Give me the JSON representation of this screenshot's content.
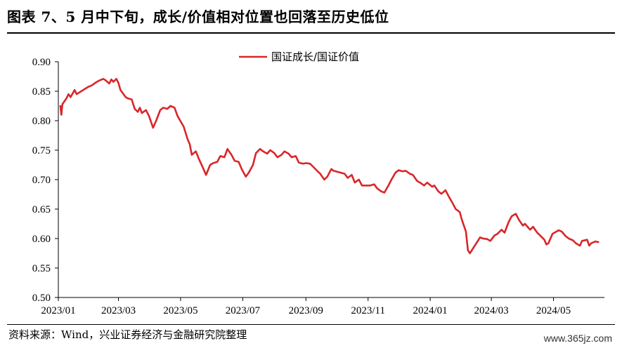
{
  "title": "图表 7、5 月中下旬，成长/价值相对位置也回落至历史低位",
  "source": "资料来源：Wind，兴业证券经济与金融研究院整理",
  "watermark": "www.365jz.com",
  "chart_data": {
    "type": "line",
    "title": "",
    "xlabel": "",
    "ylabel": "",
    "legend": "top-center",
    "grid": false,
    "ylim": [
      0.5,
      0.9
    ],
    "yticks": [
      "0.90",
      "0.85",
      "0.80",
      "0.75",
      "0.70",
      "0.65",
      "0.60",
      "0.55",
      "0.50"
    ],
    "xticks": [
      "2023/01",
      "2023/03",
      "2023/05",
      "2023/07",
      "2023/09",
      "2023/11",
      "2024/01",
      "2024/03",
      "2024/05"
    ],
    "xlim": [
      "2023/01",
      "2024/06/20"
    ],
    "series": [
      {
        "name": "国证成长/国证价值",
        "color": "#d9262a",
        "points": [
          [
            "2023-01-03",
            0.825
          ],
          [
            "2023-01-04",
            0.81
          ],
          [
            "2023-01-05",
            0.828
          ],
          [
            "2023-01-09",
            0.838
          ],
          [
            "2023-01-11",
            0.845
          ],
          [
            "2023-01-13",
            0.84
          ],
          [
            "2023-01-17",
            0.852
          ],
          [
            "2023-01-19",
            0.845
          ],
          [
            "2023-01-30",
            0.857
          ],
          [
            "2023-02-03",
            0.86
          ],
          [
            "2023-02-07",
            0.865
          ],
          [
            "2023-02-10",
            0.868
          ],
          [
            "2023-02-14",
            0.871
          ],
          [
            "2023-02-16",
            0.869
          ],
          [
            "2023-02-20",
            0.863
          ],
          [
            "2023-02-22",
            0.87
          ],
          [
            "2023-02-24",
            0.866
          ],
          [
            "2023-02-27",
            0.871
          ],
          [
            "2023-03-01",
            0.864
          ],
          [
            "2023-03-03",
            0.852
          ],
          [
            "2023-03-08",
            0.84
          ],
          [
            "2023-03-10",
            0.838
          ],
          [
            "2023-03-14",
            0.836
          ],
          [
            "2023-03-17",
            0.82
          ],
          [
            "2023-03-20",
            0.815
          ],
          [
            "2023-03-22",
            0.822
          ],
          [
            "2023-03-24",
            0.813
          ],
          [
            "2023-03-28",
            0.818
          ],
          [
            "2023-03-31",
            0.808
          ],
          [
            "2023-04-04",
            0.788
          ],
          [
            "2023-04-07",
            0.8
          ],
          [
            "2023-04-11",
            0.818
          ],
          [
            "2023-04-14",
            0.822
          ],
          [
            "2023-04-18",
            0.82
          ],
          [
            "2023-04-21",
            0.825
          ],
          [
            "2023-04-25",
            0.822
          ],
          [
            "2023-04-28",
            0.808
          ],
          [
            "2023-05-04",
            0.79
          ],
          [
            "2023-05-08",
            0.768
          ],
          [
            "2023-05-10",
            0.76
          ],
          [
            "2023-05-12",
            0.742
          ],
          [
            "2023-05-16",
            0.748
          ],
          [
            "2023-05-19",
            0.735
          ],
          [
            "2023-05-23",
            0.72
          ],
          [
            "2023-05-26",
            0.708
          ],
          [
            "2023-05-30",
            0.725
          ],
          [
            "2023-06-02",
            0.728
          ],
          [
            "2023-06-06",
            0.73
          ],
          [
            "2023-06-09",
            0.74
          ],
          [
            "2023-06-13",
            0.738
          ],
          [
            "2023-06-16",
            0.752
          ],
          [
            "2023-06-20",
            0.742
          ],
          [
            "2023-06-23",
            0.732
          ],
          [
            "2023-06-27",
            0.73
          ],
          [
            "2023-06-30",
            0.718
          ],
          [
            "2023-07-04",
            0.705
          ],
          [
            "2023-07-07",
            0.712
          ],
          [
            "2023-07-11",
            0.725
          ],
          [
            "2023-07-14",
            0.745
          ],
          [
            "2023-07-18",
            0.752
          ],
          [
            "2023-07-21",
            0.748
          ],
          [
            "2023-07-25",
            0.744
          ],
          [
            "2023-07-28",
            0.75
          ],
          [
            "2023-08-01",
            0.745
          ],
          [
            "2023-08-04",
            0.738
          ],
          [
            "2023-08-08",
            0.742
          ],
          [
            "2023-08-11",
            0.748
          ],
          [
            "2023-08-15",
            0.744
          ],
          [
            "2023-08-18",
            0.738
          ],
          [
            "2023-08-22",
            0.74
          ],
          [
            "2023-08-25",
            0.729
          ],
          [
            "2023-08-29",
            0.727
          ],
          [
            "2023-09-01",
            0.728
          ],
          [
            "2023-09-05",
            0.727
          ],
          [
            "2023-09-08",
            0.722
          ],
          [
            "2023-09-12",
            0.715
          ],
          [
            "2023-09-15",
            0.71
          ],
          [
            "2023-09-19",
            0.7
          ],
          [
            "2023-09-22",
            0.705
          ],
          [
            "2023-09-26",
            0.718
          ],
          [
            "2023-09-28",
            0.715
          ],
          [
            "2023-10-09",
            0.71
          ],
          [
            "2023-10-12",
            0.703
          ],
          [
            "2023-10-16",
            0.708
          ],
          [
            "2023-10-19",
            0.695
          ],
          [
            "2023-10-23",
            0.7
          ],
          [
            "2023-10-26",
            0.69
          ],
          [
            "2023-10-30",
            0.69
          ],
          [
            "2023-11-03",
            0.69
          ],
          [
            "2023-11-07",
            0.692
          ],
          [
            "2023-11-10",
            0.685
          ],
          [
            "2023-11-14",
            0.68
          ],
          [
            "2023-11-17",
            0.678
          ],
          [
            "2023-11-21",
            0.69
          ],
          [
            "2023-11-24",
            0.7
          ],
          [
            "2023-11-28",
            0.712
          ],
          [
            "2023-12-01",
            0.716
          ],
          [
            "2023-12-05",
            0.714
          ],
          [
            "2023-12-08",
            0.715
          ],
          [
            "2023-12-12",
            0.71
          ],
          [
            "2023-12-15",
            0.708
          ],
          [
            "2023-12-19",
            0.698
          ],
          [
            "2023-12-22",
            0.695
          ],
          [
            "2023-12-26",
            0.69
          ],
          [
            "2023-12-29",
            0.695
          ],
          [
            "2024-01-03",
            0.688
          ],
          [
            "2024-01-05",
            0.69
          ],
          [
            "2024-01-09",
            0.68
          ],
          [
            "2024-01-12",
            0.676
          ],
          [
            "2024-01-16",
            0.682
          ],
          [
            "2024-01-19",
            0.672
          ],
          [
            "2024-01-23",
            0.66
          ],
          [
            "2024-01-26",
            0.65
          ],
          [
            "2024-01-30",
            0.645
          ],
          [
            "2024-02-01",
            0.632
          ],
          [
            "2024-02-05",
            0.612
          ],
          [
            "2024-02-07",
            0.58
          ],
          [
            "2024-02-09",
            0.575
          ],
          [
            "2024-02-19",
            0.602
          ],
          [
            "2024-02-22",
            0.6
          ],
          [
            "2024-02-26",
            0.599
          ],
          [
            "2024-02-29",
            0.596
          ],
          [
            "2024-03-04",
            0.605
          ],
          [
            "2024-03-07",
            0.608
          ],
          [
            "2024-03-11",
            0.615
          ],
          [
            "2024-03-14",
            0.61
          ],
          [
            "2024-03-18",
            0.628
          ],
          [
            "2024-03-21",
            0.638
          ],
          [
            "2024-03-25",
            0.642
          ],
          [
            "2024-03-28",
            0.632
          ],
          [
            "2024-04-01",
            0.622
          ],
          [
            "2024-04-03",
            0.625
          ],
          [
            "2024-04-08",
            0.615
          ],
          [
            "2024-04-11",
            0.62
          ],
          [
            "2024-04-15",
            0.61
          ],
          [
            "2024-04-18",
            0.605
          ],
          [
            "2024-04-22",
            0.598
          ],
          [
            "2024-04-24",
            0.59
          ],
          [
            "2024-04-26",
            0.592
          ],
          [
            "2024-04-30",
            0.608
          ],
          [
            "2024-05-06",
            0.614
          ],
          [
            "2024-05-09",
            0.612
          ],
          [
            "2024-05-13",
            0.604
          ],
          [
            "2024-05-16",
            0.6
          ],
          [
            "2024-05-20",
            0.597
          ],
          [
            "2024-05-23",
            0.592
          ],
          [
            "2024-05-27",
            0.588
          ],
          [
            "2024-05-29",
            0.596
          ],
          [
            "2024-06-03",
            0.598
          ],
          [
            "2024-06-05",
            0.588
          ],
          [
            "2024-06-07",
            0.592
          ],
          [
            "2024-06-11",
            0.595
          ],
          [
            "2024-06-14",
            0.594
          ]
        ]
      }
    ]
  }
}
